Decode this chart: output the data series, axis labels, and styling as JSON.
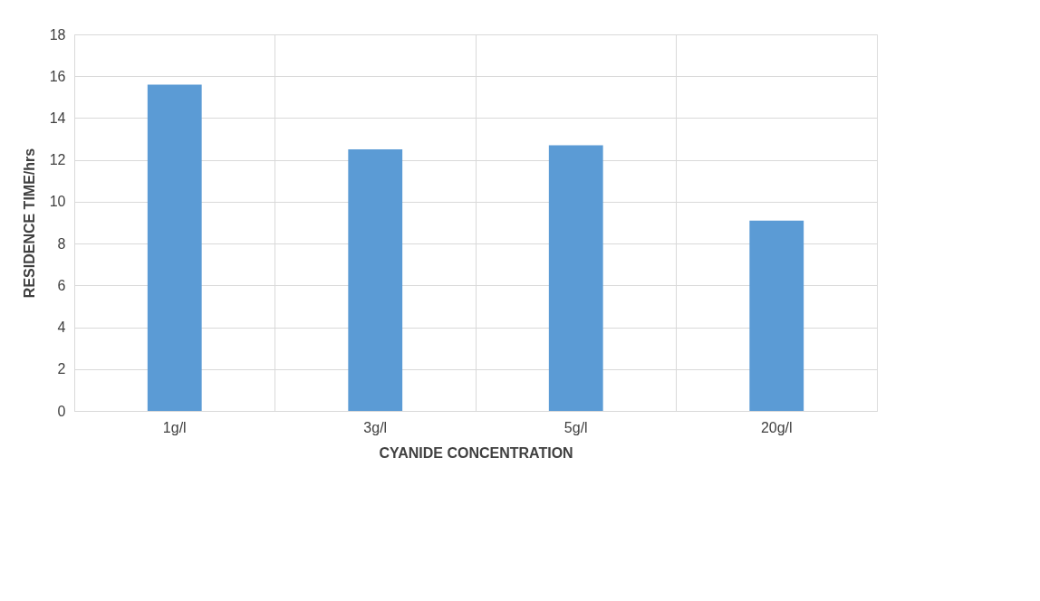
{
  "chart_data": {
    "type": "bar",
    "xlabel": "CYANIDE CONCENTRATION",
    "ylabel": "RESIDENCE TIME/hrs",
    "categories": [
      "1g/l",
      "3g/l",
      "5g/l",
      "20g/l"
    ],
    "values": [
      15.6,
      12.5,
      12.7,
      9.1
    ],
    "color": "#5b9bd5",
    "ylim": [
      0,
      18
    ],
    "yticks": [
      0,
      2,
      4,
      6,
      8,
      10,
      12,
      14,
      16,
      18
    ],
    "grid": true
  }
}
